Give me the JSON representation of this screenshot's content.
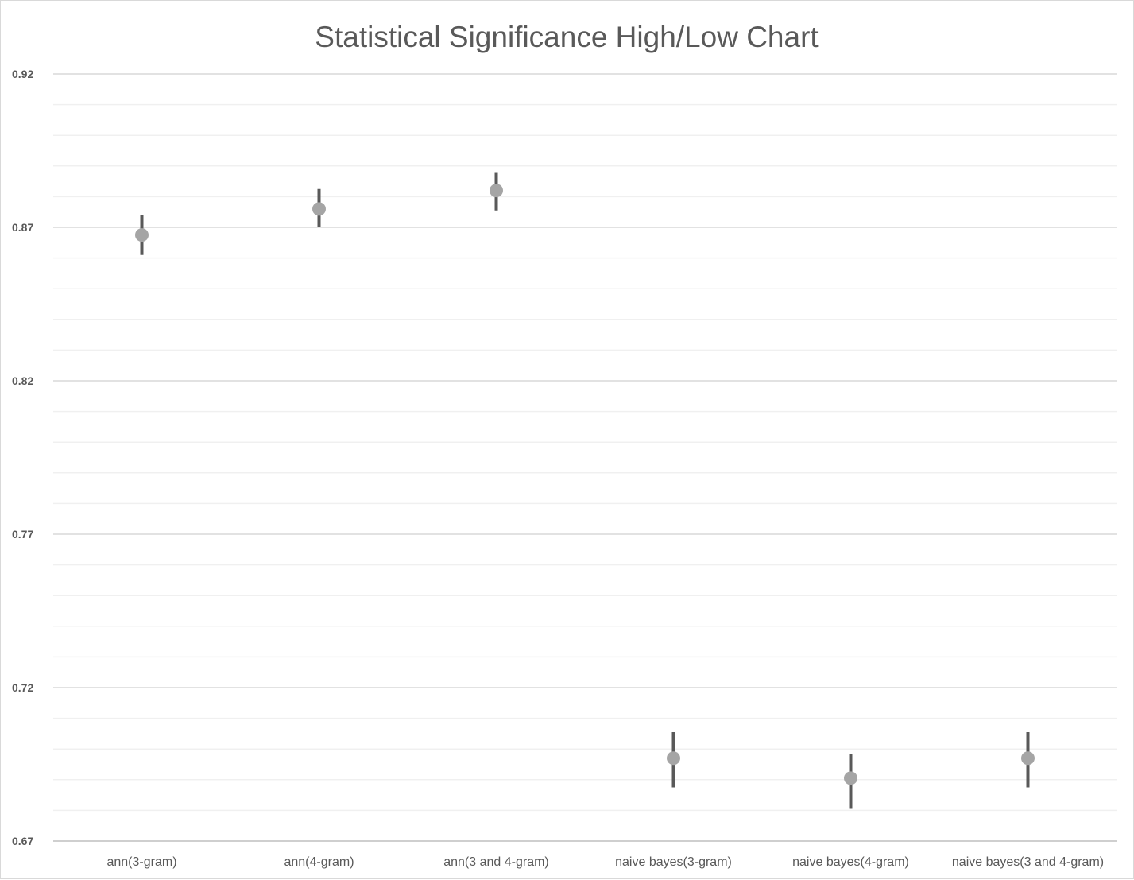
{
  "chart_data": {
    "type": "scatter",
    "subtype": "high-low-close",
    "title": "Statistical Significance High/Low Chart",
    "xlabel": "",
    "ylabel": "",
    "categories": [
      "ann(3-gram)",
      "ann(4-gram)",
      "ann(3 and 4-gram)",
      "naive bayes(3-gram)",
      "naive bayes(4-gram)",
      "naive bayes(3 and 4-gram)"
    ],
    "series": [
      {
        "high": 0.874,
        "low": 0.861,
        "value": 0.8675
      },
      {
        "high": 0.8825,
        "low": 0.87,
        "value": 0.876
      },
      {
        "high": 0.888,
        "low": 0.8755,
        "value": 0.882
      },
      {
        "high": 0.7055,
        "low": 0.6875,
        "value": 0.697
      },
      {
        "high": 0.6985,
        "low": 0.6805,
        "value": 0.6905
      },
      {
        "high": 0.7055,
        "low": 0.6875,
        "value": 0.697
      }
    ],
    "ylim": [
      0.67,
      0.92
    ],
    "yticks": [
      "0.92",
      "0.87",
      "0.82",
      "0.77",
      "0.72",
      "0.67"
    ],
    "ytick_values": [
      0.92,
      0.87,
      0.82,
      0.77,
      0.72,
      0.67
    ],
    "minor_gridline_step": 0.01,
    "grid": true,
    "legend": "none",
    "colors": {
      "marker": "#a5a5a5",
      "whisker": "#595959",
      "major_grid": "#d9d9d9",
      "minor_grid": "#f0f0f0",
      "axis": "#bfbfbf",
      "text": "#595959"
    }
  }
}
